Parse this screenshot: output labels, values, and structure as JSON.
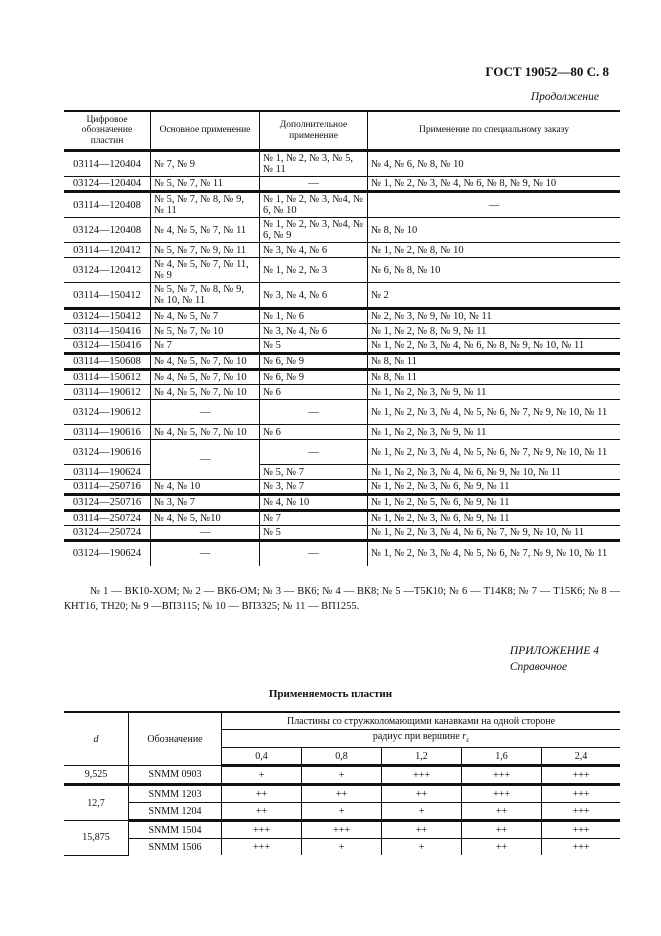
{
  "header": {
    "doc_id": "ГОСТ 19052—80 С. 8",
    "continuation": "Продолжение"
  },
  "table1": {
    "columns": [
      "Цифровое обозначение пластин",
      "Основное применение",
      "Дополнительное применение",
      "Применение по специальному заказу"
    ],
    "rows": [
      [
        "03114—120404",
        "№ 7, № 9",
        "№ 1, № 2, № 3, № 5, № 11",
        "№ 4, № 6, № 8, № 10"
      ],
      [
        "03124—120404",
        "№ 5, № 7, № 11",
        "—",
        "№ 1, № 2, № 3, № 4, № 6, № 8, № 9, № 10"
      ],
      [
        "03114—120408",
        "№ 5, № 7, № 8, № 9, № 11",
        "№ 1, № 2, № 3,  №4, № 6, № 10",
        "—"
      ],
      [
        "03124—120408",
        "№ 4, № 5, № 7, № 11",
        "№ 1, № 2, № 3,  №4, № 6, № 9",
        "№ 8, № 10"
      ],
      [
        "03114—120412",
        "№ 5, № 7, № 9, № 11",
        "№ 3, № 4, № 6",
        "№ 1, № 2, № 8, № 10"
      ],
      [
        "03124—120412",
        "№ 4, № 5, № 7, № 11, № 9",
        "№ 1, № 2, № 3",
        "№ 6, № 8, № 10"
      ],
      [
        "03114—150412",
        "№ 5, № 7, № 8, № 9, № 10, № 11",
        "№ 3, № 4, № 6",
        "№ 2"
      ],
      [
        "03124—150412",
        "№ 4, № 5, № 7",
        "№ 1, № 6",
        "№ 2, № 3, № 9, № 10, № 11"
      ],
      [
        "03114—150416",
        "№ 5, № 7, № 10",
        "№ 3, № 4, № 6",
        "№ 1, № 2, № 8, № 9, № 11"
      ],
      [
        "03124—150416",
        "№ 7",
        "№ 5",
        "№ 1, № 2, № 3, № 4, № 6, № 8, № 9, № 10, № 11"
      ],
      [
        "03114—150608",
        "№ 4, № 5, № 7, № 10",
        "№ 6, № 9",
        "№ 8, № 11"
      ],
      [
        "03114—150612",
        "№ 4, № 5, № 7, № 10",
        "№ 6, № 9",
        "№ 8, № 11"
      ],
      [
        "03114—190612",
        "№ 4, № 5, № 7, № 10",
        "№ 6",
        "№ 1, № 2, № 3, № 9, № 11"
      ],
      [
        "03124—190612",
        "—",
        "—",
        "№ 1, № 2, № 3, № 4, № 5, № 6, № 7, № 9, № 10, № 11"
      ],
      [
        "03114—190616",
        "№ 4, № 5, № 7, № 10",
        "№ 6",
        "№ 1, № 2, № 3, № 9, № 11"
      ],
      [
        "03124—190616",
        "—",
        "—",
        "№ 1, № 2, № 3, № 4, № 5, № 6, № 7, № 9, № 10, № 11"
      ],
      [
        "03114—190624",
        "",
        "№ 5, № 7",
        "№ 1, № 2, № 3, № 4, № 6, № 9, № 10, № 11"
      ],
      [
        "03114—250716",
        "№ 4, № 10",
        "№ 3, № 7",
        "№ 1, № 2, № 3, № 6, № 9, № 11"
      ],
      [
        "03124—250716",
        "№ 3, № 7",
        "№ 4, № 10",
        "№ 1, № 2, № 5, № 6, № 9, № 11"
      ],
      [
        "03114—250724",
        "№ 4, № 5, №10",
        "№ 7",
        "№ 1, № 2, № 3, № 6, № 9, № 11"
      ],
      [
        "03124—250724",
        "—",
        "№ 5",
        "№ 1, № 2, № 3, № 4, № 6, № 7, № 9, № 10, № 11"
      ],
      [
        "03124—190624",
        "—",
        "—",
        "№ 1, № 2, № 3, № 4, № 5, № 6, № 7, № 9, № 10, № 11"
      ]
    ]
  },
  "note": "№ 1 — ВК10-ХОМ; № 2 — ВК6-ОМ; № 3 — ВК6; № 4 — ВК8; № 5 —Т5К10; № 6 — Т14К8; № 7 — Т15К6; № 8 — КНТ16, ТН20; № 9 —ВП3115; № 10 — ВП3325; № 11 — ВП1255.",
  "appendix": {
    "label": "ПРИЛОЖЕНИЕ 4",
    "type": "Справочное"
  },
  "table2": {
    "title": "Применяемость пластин",
    "col_d": "d",
    "col_designation": "Обозначение",
    "group_header": "Пластины со стружколомающими канавками на одной стороне",
    "sub_header": "радиус при вершине rε",
    "radii": [
      "0,4",
      "0,8",
      "1,2",
      "1,6",
      "2,4"
    ],
    "groups": [
      {
        "d": "9,525",
        "rows": [
          {
            "designation": "SNMM 0903",
            "values": [
              "+",
              "+",
              "+++",
              "+++",
              "+++"
            ]
          }
        ]
      },
      {
        "d": "12,7",
        "rows": [
          {
            "designation": "SNMM 1203",
            "values": [
              "++",
              "++",
              "++",
              "+++",
              "+++"
            ]
          },
          {
            "designation": "SNMM 1204",
            "values": [
              "++",
              "+",
              "+",
              "++",
              "+++"
            ]
          }
        ]
      },
      {
        "d": "15,875",
        "rows": [
          {
            "designation": "SNMM 1504",
            "values": [
              "+++",
              "+++",
              "++",
              "++",
              "+++"
            ]
          },
          {
            "designation": "SNMM 1506",
            "values": [
              "+++",
              "+",
              "+",
              "++",
              "+++"
            ]
          }
        ]
      }
    ]
  }
}
